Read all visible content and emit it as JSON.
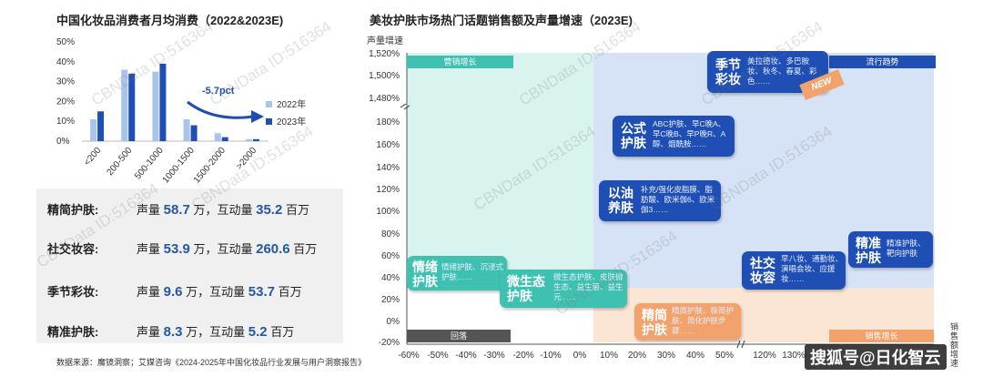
{
  "left_title": "中国化妆品消费者月均消费（2022&2023E)",
  "right_title": "美妆护肤市场热门话题销售额及声量增速（2023E)",
  "annotation": "-5.7pct",
  "watermark": "CBNData ID:516364",
  "metrics": [
    {
      "label": "精简护肤:",
      "pre": "声量",
      "v1": "58.7",
      "mid": "万，互动量",
      "v2": "35.2",
      "unit2": "百万"
    },
    {
      "label": "社交妆容:",
      "pre": "声量",
      "v1": "53.9",
      "mid": "万，互动量",
      "v2": "260.6",
      "unit2": "百万"
    },
    {
      "label": "季节彩妆:",
      "pre": "声量",
      "v1": "9.6",
      "mid": "万，互动量",
      "v2": "53.7",
      "unit2": "百万"
    },
    {
      "label": "精准护肤:",
      "pre": "声量",
      "v1": "8.3",
      "mid": "万，互动量",
      "v2": "5.2",
      "unit2": "百万"
    }
  ],
  "source": "数据来源：魔镜洞察；艾媒咨询《2024-2025年中国化妆品行业发展与用户洞察报告》",
  "quadrants": {
    "top_left": "营销增长",
    "top_right": "流行趋势",
    "bottom_left": "回落",
    "bottom_right": "销售增长"
  },
  "ylabel_right": "声量增速",
  "side_text": "销售额增速",
  "bottom_logo": "搜狐号@日化智云",
  "badge": "NEW",
  "colors": {
    "series_2022": "#a9c4ea",
    "series_2023": "#1f4fb4",
    "quad_tl": "#d9f4ef",
    "quad_tr": "#d6e2f6",
    "quad_br": "#fbe6d6",
    "card_blue": "#1f4fb4",
    "card_teal": "#3fc1b2",
    "card_orange": "#f3a26c"
  },
  "chart_data": [
    {
      "type": "bar",
      "title": "中国化妆品消费者月均消费（2022&2023E)",
      "categories": [
        "<200",
        "200-500",
        "500-1000",
        "1000-1500",
        "1500-2000",
        ">2000"
      ],
      "series": [
        {
          "name": "2022年",
          "values": [
            11,
            36,
            35,
            11,
            4,
            1
          ]
        },
        {
          "name": "2023年",
          "values": [
            15,
            34,
            39,
            8,
            2,
            1
          ]
        }
      ],
      "ylim": [
        0,
        50
      ],
      "yticks": [
        "0%",
        "10%",
        "20%",
        "30%",
        "40%",
        "50%"
      ],
      "legend": "right"
    },
    {
      "type": "scatter",
      "title": "美妆护肤市场热门话题销售额及声量增速（2023E)",
      "ylabel": "声量增速",
      "xticks": [
        "-60%",
        "-50%",
        "-40%",
        "-30%",
        "-20%",
        "-10%",
        "0%",
        "10%",
        "20%",
        "30%",
        "40%",
        "50%",
        "120%",
        "130%"
      ],
      "yticks": [
        "-20%",
        "0%",
        "20%",
        "40%",
        "60%",
        "80%",
        "100%",
        "120%",
        "140%",
        "160%",
        "180%",
        "1,480%",
        "1,500%",
        "1,520%"
      ],
      "points": [
        {
          "name": "季节彩妆",
          "desc": "美拉德妆、多巴胺妆、秋冬、春夏、彩色……"
        },
        {
          "name": "公式护肤",
          "desc": "ABC护肤、早C晚A、早C晚B、早P晚R、A醇、烟酰胺……"
        },
        {
          "name": "以油养肤",
          "desc": "补充/强化皮脂膜、脂肪酸、欧米伽6、欧米伽3……"
        },
        {
          "name": "精准护肤",
          "desc": "精准护肤、靶向护肤"
        },
        {
          "name": "社交妆容",
          "desc": "早八妆、通勤妆、演唱会妆、应援妆……"
        },
        {
          "name": "情绪护肤",
          "desc": "情绪护肤、沉浸式护肤……"
        },
        {
          "name": "微生态护肤",
          "desc": "微生态护肤、皮肤微生态、益生菌、益生元……"
        },
        {
          "name": "精简护肤",
          "desc": "精简护肤、极简护肤、简化护肤步骤……"
        }
      ]
    }
  ]
}
